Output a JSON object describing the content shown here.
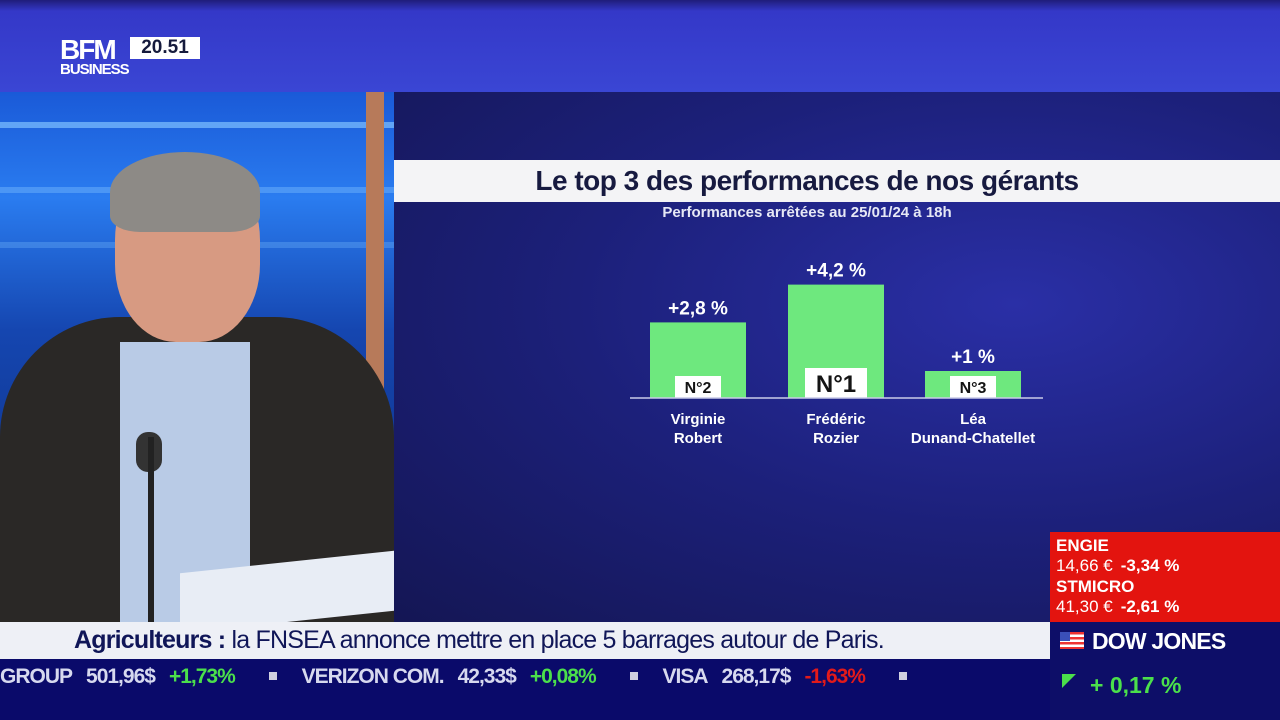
{
  "channel": {
    "logo_top": "BFM",
    "logo_bottom": "BUSINESS",
    "time": "20.51"
  },
  "chart_data": {
    "type": "bar",
    "title": "Le top 3 des performances de nos gérants",
    "subtitle": "Performances arrêtées au 25/01/24 à 18h",
    "categories": [
      "Virginie Robert",
      "Frédéric Rozier",
      "Léa Dunand-Chatellet"
    ],
    "category_lines": [
      [
        "Virginie",
        "Robert"
      ],
      [
        "Frédéric",
        "Rozier"
      ],
      [
        "Léa",
        "Dunand-Chatellet"
      ]
    ],
    "values": [
      2.8,
      4.2,
      1.0
    ],
    "value_labels": [
      "+2,8 %",
      "+4,2 %",
      "+1 %"
    ],
    "rank_labels": [
      "N°2",
      "N°1",
      "N°3"
    ],
    "bar_color": "#6ee87e",
    "unit": "%"
  },
  "stocks": [
    {
      "name": "ENGIE",
      "price": "14,66 €",
      "change": "-3,34 %"
    },
    {
      "name": "STMICRO",
      "price": "41,30 €",
      "change": "-2,61 %"
    }
  ],
  "headline": {
    "topic": "Agriculteurs :",
    "text": " la FNSEA annonce mettre en place 5 barrages autour de Paris."
  },
  "ticker": [
    {
      "name": "GROUP",
      "price": "501,96$",
      "change": "+1,73%",
      "dir": "up"
    },
    {
      "name": "VERIZON COM.",
      "price": "42,33$",
      "change": "+0,08%",
      "dir": "up"
    },
    {
      "name": "VISA",
      "price": "268,17$",
      "change": "-1,63%",
      "dir": "down"
    }
  ],
  "index": {
    "name": "DOW JONES",
    "change": "+ 0,17 %"
  },
  "colors": {
    "up": "#4be04b",
    "down": "#e21a1a",
    "stock_box": "#e3140f",
    "panel": "#1c207a"
  }
}
